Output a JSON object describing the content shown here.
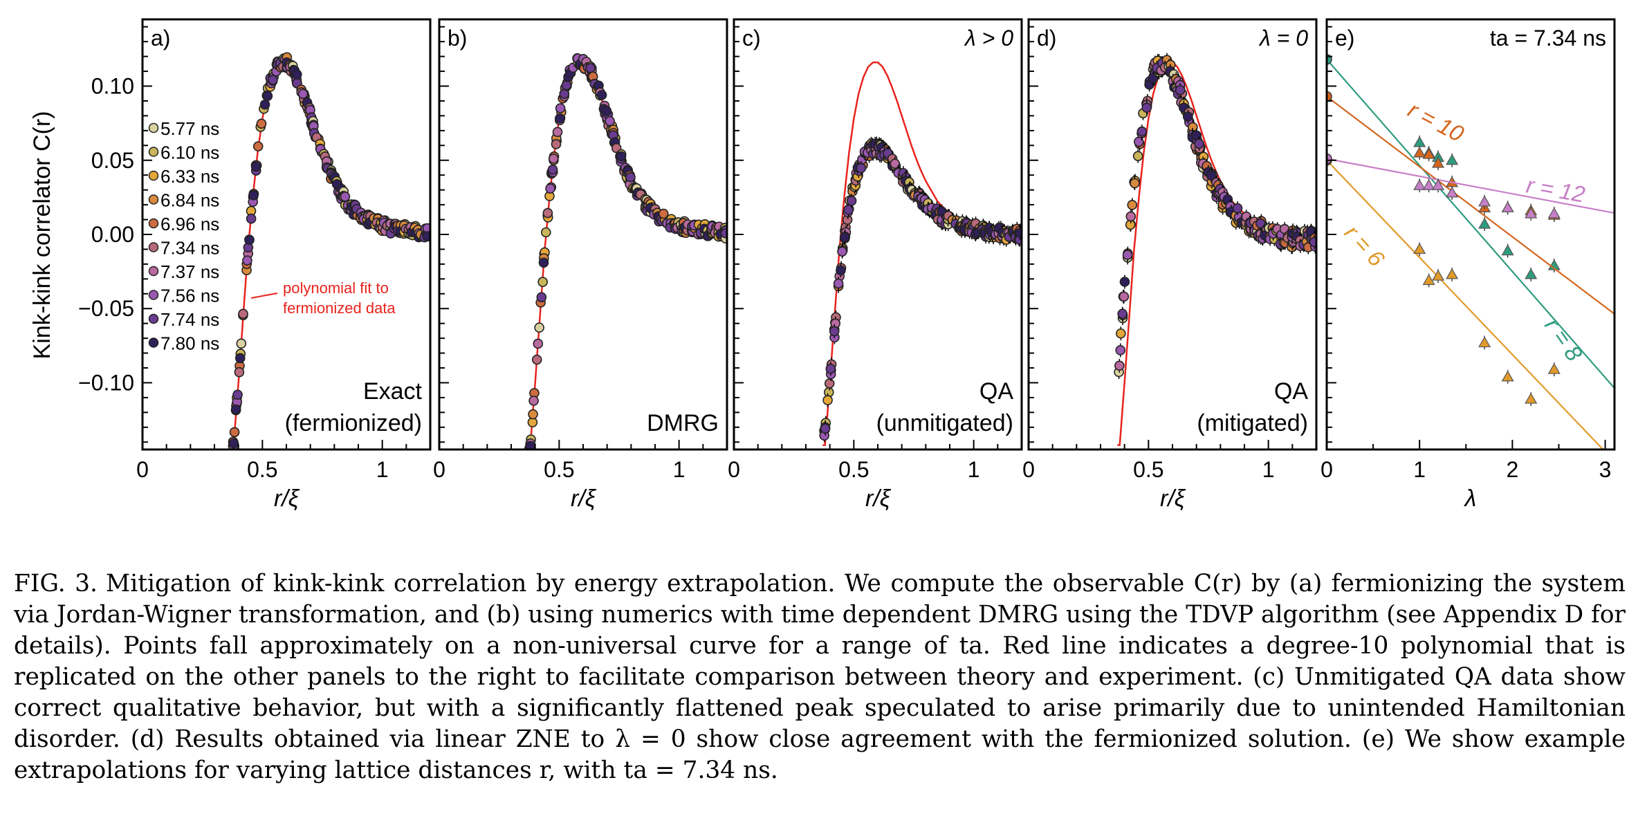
{
  "figure": {
    "ylabel": "Kink-kink correlator C(r)",
    "annotation": "polynomial fit to fermionized data",
    "legend": [
      "5.77 ns",
      "6.10 ns",
      "6.33 ns",
      "6.84 ns",
      "6.96 ns",
      "7.34 ns",
      "7.37 ns",
      "7.56 ns",
      "7.74 ns",
      "7.80 ns"
    ],
    "panels": [
      {
        "tag": "a)",
        "corner": "",
        "bottom": [
          "Exact",
          "(fermionized)"
        ],
        "xlabel": "r/ξ"
      },
      {
        "tag": "b)",
        "corner": "",
        "bottom": [
          "",
          "DMRG"
        ],
        "xlabel": "r/ξ"
      },
      {
        "tag": "c)",
        "corner": "λ > 0",
        "bottom": [
          "QA",
          "(unmitigated)"
        ],
        "xlabel": "r/ξ"
      },
      {
        "tag": "d)",
        "corner": "λ = 0",
        "bottom": [
          "QA",
          "(mitigated)"
        ],
        "xlabel": "r/ξ"
      },
      {
        "tag": "e)",
        "corner": "ta = 7.34 ns",
        "bottom": [
          "",
          ""
        ],
        "xlabel": "λ"
      }
    ]
  },
  "chart_data": [
    {
      "type": "scatter",
      "panel": "a",
      "title": "",
      "xlabel": "r/ξ",
      "ylabel": "Kink-kink correlator C(r)",
      "xlim": [
        0,
        1.2
      ],
      "ylim": [
        -0.145,
        0.145
      ],
      "xticks": [
        "0",
        "0.5",
        "1"
      ],
      "yticks": [
        "0.10",
        "0.05",
        "0.00",
        "−0.05",
        "−0.10"
      ],
      "fit": {
        "name": "polynomial fit to fermionized data",
        "x": [
          0.38,
          0.4,
          0.42,
          0.44,
          0.46,
          0.48,
          0.5,
          0.52,
          0.54,
          0.56,
          0.58,
          0.6,
          0.62,
          0.64,
          0.66,
          0.68,
          0.7,
          0.72,
          0.74,
          0.76,
          0.78,
          0.8,
          0.85,
          0.9,
          0.95,
          1.0,
          1.05,
          1.1,
          1.15,
          1.2
        ],
        "y": [
          -0.142,
          -0.1,
          -0.055,
          -0.01,
          0.025,
          0.055,
          0.078,
          0.095,
          0.106,
          0.113,
          0.116,
          0.116,
          0.113,
          0.107,
          0.099,
          0.09,
          0.08,
          0.07,
          0.06,
          0.051,
          0.043,
          0.036,
          0.022,
          0.014,
          0.009,
          0.006,
          0.004,
          0.003,
          0.002,
          0.001
        ]
      },
      "series_note": "10 annealing times overlap on the fit curve"
    },
    {
      "type": "scatter",
      "panel": "b",
      "title": "",
      "xlabel": "r/ξ",
      "xlim": [
        0,
        1.2
      ],
      "ylim": [
        -0.145,
        0.145
      ],
      "xticks": [
        "0",
        "0.5",
        "1"
      ],
      "series_note": "DMRG points overlap the fit curve"
    },
    {
      "type": "scatter",
      "panel": "c",
      "title": "λ > 0",
      "xlabel": "r/ξ",
      "xlim": [
        0,
        1.2
      ],
      "ylim": [
        -0.145,
        0.145
      ],
      "xticks": [
        "0",
        "0.5",
        "1"
      ],
      "peak_data": {
        "x": [
          0.38,
          0.4,
          0.42,
          0.44,
          0.46,
          0.48,
          0.5,
          0.52,
          0.54,
          0.56,
          0.58,
          0.6,
          0.62,
          0.64,
          0.66,
          0.68,
          0.7,
          0.72,
          0.74,
          0.76,
          0.78,
          0.8,
          0.85,
          0.9,
          0.95,
          1.0,
          1.05,
          1.1,
          1.15,
          1.2
        ],
        "y": [
          -0.135,
          -0.1,
          -0.065,
          -0.03,
          -0.003,
          0.018,
          0.033,
          0.044,
          0.051,
          0.056,
          0.058,
          0.058,
          0.056,
          0.053,
          0.049,
          0.045,
          0.04,
          0.035,
          0.031,
          0.027,
          0.023,
          0.019,
          0.013,
          0.009,
          0.006,
          0.004,
          0.002,
          0.001,
          0.0,
          0.0
        ]
      }
    },
    {
      "type": "scatter",
      "panel": "d",
      "title": "λ = 0",
      "xlabel": "r/ξ",
      "xlim": [
        0,
        1.2
      ],
      "ylim": [
        -0.145,
        0.145
      ],
      "xticks": [
        "0",
        "0.5",
        "1"
      ],
      "data": {
        "x": [
          0.36,
          0.38,
          0.4,
          0.42,
          0.44,
          0.46,
          0.48,
          0.5,
          0.52,
          0.54,
          0.56,
          0.58,
          0.6,
          0.62,
          0.64,
          0.66,
          0.68,
          0.7,
          0.72,
          0.74,
          0.76,
          0.78,
          0.8,
          0.85,
          0.9,
          0.95,
          1.0,
          1.05,
          1.1,
          1.15,
          1.2
        ],
        "y": [
          -0.13,
          -0.08,
          -0.035,
          0.0,
          0.03,
          0.058,
          0.08,
          0.097,
          0.108,
          0.114,
          0.114,
          0.112,
          0.108,
          0.1,
          0.092,
          0.083,
          0.073,
          0.063,
          0.054,
          0.045,
          0.037,
          0.031,
          0.025,
          0.015,
          0.009,
          0.005,
          0.001,
          -0.002,
          -0.003,
          -0.003,
          -0.003
        ]
      }
    },
    {
      "type": "scatter",
      "panel": "e",
      "title": "ta = 7.34 ns",
      "xlabel": "λ",
      "xlim": [
        0,
        3.1
      ],
      "ylim": [
        -0.145,
        0.145
      ],
      "xticks": [
        "0",
        "1",
        "2",
        "3"
      ],
      "series": [
        {
          "name": "r = 6",
          "color": "#e09a2a",
          "intercept": 0.05,
          "slope": -0.0655,
          "x": [
            1.0,
            1.1,
            1.2,
            1.35,
            1.7,
            1.95,
            2.2,
            2.45
          ],
          "y": [
            -0.01,
            -0.031,
            -0.028,
            -0.027,
            -0.073,
            -0.096,
            -0.111,
            -0.091
          ]
        },
        {
          "name": "r = 8",
          "color": "#2e9c7f",
          "intercept": 0.118,
          "slope": -0.0715,
          "x": [
            1.0,
            1.1,
            1.2,
            1.35,
            1.7,
            1.95,
            2.2,
            2.45
          ],
          "y": [
            0.062,
            0.055,
            0.052,
            0.05,
            0.007,
            -0.011,
            -0.027,
            -0.021
          ]
        },
        {
          "name": "r = 10",
          "color": "#d4661e",
          "intercept": 0.093,
          "slope": -0.0473,
          "x": [
            1.0,
            1.1,
            1.2,
            1.35,
            1.7,
            1.95,
            2.2,
            2.45
          ],
          "y": [
            0.055,
            0.054,
            0.048,
            0.035,
            0.018,
            0.018,
            0.016,
            0.013
          ]
        },
        {
          "name": "r = 12",
          "color": "#c77fc7",
          "intercept": 0.051,
          "slope": -0.0118,
          "x": [
            1.0,
            1.1,
            1.2,
            1.35,
            1.7,
            1.95,
            2.2,
            2.45
          ],
          "y": [
            0.033,
            0.033,
            0.033,
            0.028,
            0.022,
            0.018,
            0.014,
            0.014
          ]
        }
      ]
    }
  ],
  "caption": {
    "label": "FIG. 3.",
    "text": "Mitigation of kink-kink correlation by energy extrapolation. We compute the observable C(r) by (a) fermionizing the system via Jordan-Wigner transformation, and (b) using numerics with time dependent DMRG using the TDVP algorithm (see Appendix D for details). Points fall approximately on a non-universal curve for a range of ta. Red line indicates a degree-10 polynomial that is replicated on the other panels to the right to facilitate comparison between theory and experiment. (c) Unmitigated QA data show correct qualitative behavior, but with a significantly flattened peak speculated to arise primarily due to unintended Hamiltonian disorder. (d) Results obtained via linear ZNE to λ = 0 show close agreement with the fermionized solution. (e) We show example extrapolations for varying lattice distances r, with ta = 7.34 ns."
  }
}
